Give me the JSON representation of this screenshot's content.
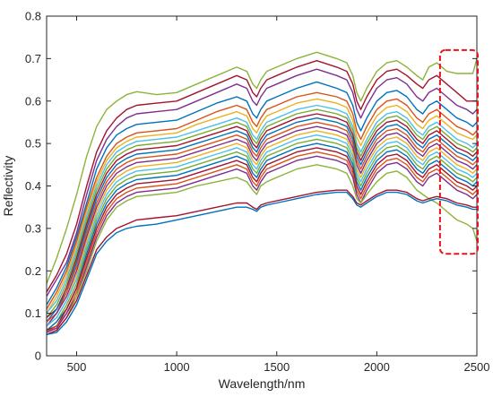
{
  "chart_data": {
    "type": "line",
    "title": "",
    "xlabel": "Wavelength/nm",
    "ylabel": "Reflectivity",
    "xlim": [
      350,
      2500
    ],
    "ylim": [
      0,
      0.8
    ],
    "xticks": [
      500,
      1000,
      1500,
      2000,
      2500
    ],
    "xtick_labels": [
      "500",
      "1000",
      "1500",
      "2000",
      "2500"
    ],
    "yticks": [
      0,
      0.1,
      0.2,
      0.3,
      0.4,
      0.5,
      0.6,
      0.7,
      0.8
    ],
    "ytick_labels": [
      "0",
      "0.1",
      "0.2",
      "0.3",
      "0.4",
      "0.5",
      "0.6",
      "0.7",
      "0.8"
    ],
    "grid": false,
    "legend": "none",
    "highlight_region": {
      "x": [
        2280,
        2500
      ],
      "y": [
        0.24,
        0.72
      ],
      "color": "#e8141b",
      "style": "dashed"
    },
    "x": [
      350,
      400,
      450,
      500,
      550,
      600,
      650,
      700,
      750,
      800,
      900,
      1000,
      1100,
      1200,
      1300,
      1350,
      1380,
      1400,
      1420,
      1450,
      1500,
      1600,
      1700,
      1800,
      1850,
      1880,
      1900,
      1920,
      1950,
      2000,
      2050,
      2100,
      2150,
      2200,
      2230,
      2260,
      2300,
      2350,
      2400,
      2450,
      2480,
      2500
    ],
    "series": [
      {
        "color": "#8db33a",
        "values": [
          0.17,
          0.23,
          0.3,
          0.38,
          0.47,
          0.54,
          0.58,
          0.6,
          0.615,
          0.622,
          0.615,
          0.62,
          0.64,
          0.66,
          0.68,
          0.67,
          0.64,
          0.63,
          0.65,
          0.67,
          0.68,
          0.7,
          0.715,
          0.7,
          0.69,
          0.66,
          0.62,
          0.6,
          0.63,
          0.67,
          0.69,
          0.695,
          0.68,
          0.66,
          0.65,
          0.68,
          0.69,
          0.67,
          0.665,
          0.665,
          0.665,
          0.7
        ]
      },
      {
        "color": "#a2142f",
        "values": [
          0.15,
          0.19,
          0.24,
          0.31,
          0.4,
          0.48,
          0.53,
          0.56,
          0.58,
          0.59,
          0.595,
          0.6,
          0.62,
          0.64,
          0.66,
          0.65,
          0.62,
          0.61,
          0.63,
          0.65,
          0.66,
          0.68,
          0.695,
          0.68,
          0.67,
          0.64,
          0.6,
          0.58,
          0.61,
          0.65,
          0.67,
          0.675,
          0.66,
          0.64,
          0.63,
          0.65,
          0.66,
          0.64,
          0.62,
          0.6,
          0.6,
          0.6
        ]
      },
      {
        "color": "#7e2f8e",
        "values": [
          0.14,
          0.18,
          0.22,
          0.29,
          0.38,
          0.46,
          0.51,
          0.54,
          0.56,
          0.57,
          0.575,
          0.58,
          0.6,
          0.62,
          0.64,
          0.63,
          0.6,
          0.59,
          0.61,
          0.63,
          0.64,
          0.66,
          0.675,
          0.66,
          0.65,
          0.62,
          0.58,
          0.56,
          0.59,
          0.63,
          0.65,
          0.655,
          0.64,
          0.61,
          0.6,
          0.62,
          0.63,
          0.61,
          0.59,
          0.58,
          0.57,
          0.58
        ]
      },
      {
        "color": "#0072bd",
        "values": [
          0.12,
          0.16,
          0.21,
          0.28,
          0.36,
          0.44,
          0.49,
          0.52,
          0.535,
          0.545,
          0.55,
          0.555,
          0.575,
          0.595,
          0.61,
          0.6,
          0.57,
          0.56,
          0.58,
          0.6,
          0.61,
          0.63,
          0.645,
          0.63,
          0.62,
          0.59,
          0.55,
          0.53,
          0.56,
          0.6,
          0.62,
          0.625,
          0.61,
          0.58,
          0.57,
          0.59,
          0.6,
          0.58,
          0.56,
          0.55,
          0.54,
          0.55
        ]
      },
      {
        "color": "#d95319",
        "values": [
          0.11,
          0.15,
          0.2,
          0.27,
          0.35,
          0.42,
          0.47,
          0.5,
          0.515,
          0.525,
          0.53,
          0.535,
          0.555,
          0.575,
          0.59,
          0.58,
          0.55,
          0.54,
          0.56,
          0.58,
          0.59,
          0.61,
          0.62,
          0.61,
          0.6,
          0.57,
          0.53,
          0.51,
          0.54,
          0.58,
          0.6,
          0.605,
          0.59,
          0.56,
          0.55,
          0.57,
          0.58,
          0.56,
          0.54,
          0.53,
          0.52,
          0.53
        ]
      },
      {
        "color": "#edb120",
        "values": [
          0.1,
          0.14,
          0.19,
          0.26,
          0.34,
          0.41,
          0.46,
          0.49,
          0.505,
          0.515,
          0.52,
          0.525,
          0.545,
          0.56,
          0.575,
          0.565,
          0.535,
          0.525,
          0.545,
          0.565,
          0.575,
          0.595,
          0.605,
          0.595,
          0.585,
          0.555,
          0.515,
          0.495,
          0.525,
          0.565,
          0.585,
          0.59,
          0.575,
          0.545,
          0.535,
          0.555,
          0.565,
          0.545,
          0.525,
          0.515,
          0.51,
          0.52
        ]
      },
      {
        "color": "#4dbeee",
        "values": [
          0.1,
          0.13,
          0.18,
          0.25,
          0.33,
          0.4,
          0.45,
          0.48,
          0.495,
          0.505,
          0.51,
          0.515,
          0.53,
          0.545,
          0.56,
          0.55,
          0.52,
          0.51,
          0.53,
          0.55,
          0.56,
          0.58,
          0.59,
          0.58,
          0.57,
          0.54,
          0.5,
          0.48,
          0.51,
          0.55,
          0.57,
          0.575,
          0.56,
          0.53,
          0.52,
          0.54,
          0.55,
          0.53,
          0.51,
          0.5,
          0.49,
          0.5
        ]
      },
      {
        "color": "#77ac30",
        "values": [
          0.09,
          0.12,
          0.17,
          0.24,
          0.32,
          0.39,
          0.44,
          0.47,
          0.485,
          0.495,
          0.5,
          0.505,
          0.52,
          0.535,
          0.55,
          0.54,
          0.51,
          0.5,
          0.52,
          0.54,
          0.55,
          0.57,
          0.58,
          0.57,
          0.56,
          0.53,
          0.49,
          0.47,
          0.5,
          0.54,
          0.56,
          0.565,
          0.55,
          0.52,
          0.51,
          0.53,
          0.54,
          0.52,
          0.5,
          0.49,
          0.48,
          0.49
        ]
      },
      {
        "color": "#a2142f",
        "values": [
          0.09,
          0.11,
          0.16,
          0.23,
          0.31,
          0.38,
          0.43,
          0.46,
          0.475,
          0.485,
          0.49,
          0.495,
          0.51,
          0.525,
          0.54,
          0.53,
          0.5,
          0.49,
          0.51,
          0.53,
          0.54,
          0.56,
          0.57,
          0.56,
          0.55,
          0.52,
          0.48,
          0.46,
          0.49,
          0.53,
          0.55,
          0.555,
          0.54,
          0.51,
          0.5,
          0.52,
          0.53,
          0.51,
          0.49,
          0.48,
          0.47,
          0.48
        ]
      },
      {
        "color": "#0072bd",
        "values": [
          0.08,
          0.11,
          0.15,
          0.22,
          0.3,
          0.37,
          0.42,
          0.45,
          0.465,
          0.475,
          0.48,
          0.485,
          0.5,
          0.515,
          0.53,
          0.52,
          0.49,
          0.48,
          0.5,
          0.52,
          0.53,
          0.55,
          0.56,
          0.55,
          0.54,
          0.51,
          0.47,
          0.45,
          0.48,
          0.52,
          0.54,
          0.545,
          0.53,
          0.5,
          0.49,
          0.51,
          0.52,
          0.5,
          0.48,
          0.47,
          0.46,
          0.47
        ]
      },
      {
        "color": "#d95319",
        "values": [
          0.08,
          0.1,
          0.15,
          0.21,
          0.29,
          0.36,
          0.41,
          0.44,
          0.455,
          0.465,
          0.47,
          0.475,
          0.49,
          0.505,
          0.52,
          0.51,
          0.48,
          0.47,
          0.49,
          0.51,
          0.52,
          0.54,
          0.55,
          0.54,
          0.53,
          0.5,
          0.46,
          0.44,
          0.47,
          0.51,
          0.53,
          0.535,
          0.52,
          0.49,
          0.48,
          0.5,
          0.51,
          0.49,
          0.47,
          0.46,
          0.45,
          0.46
        ]
      },
      {
        "color": "#7e2f8e",
        "values": [
          0.07,
          0.1,
          0.14,
          0.2,
          0.28,
          0.35,
          0.4,
          0.43,
          0.445,
          0.455,
          0.46,
          0.465,
          0.48,
          0.495,
          0.51,
          0.5,
          0.47,
          0.46,
          0.48,
          0.5,
          0.51,
          0.53,
          0.54,
          0.53,
          0.52,
          0.49,
          0.45,
          0.43,
          0.46,
          0.5,
          0.52,
          0.525,
          0.51,
          0.48,
          0.47,
          0.49,
          0.5,
          0.48,
          0.46,
          0.45,
          0.44,
          0.45
        ]
      },
      {
        "color": "#edb120",
        "values": [
          0.07,
          0.09,
          0.13,
          0.19,
          0.27,
          0.34,
          0.39,
          0.42,
          0.435,
          0.445,
          0.45,
          0.455,
          0.47,
          0.485,
          0.5,
          0.49,
          0.46,
          0.45,
          0.47,
          0.49,
          0.5,
          0.52,
          0.53,
          0.52,
          0.51,
          0.48,
          0.44,
          0.42,
          0.45,
          0.49,
          0.51,
          0.515,
          0.5,
          0.47,
          0.46,
          0.48,
          0.49,
          0.47,
          0.45,
          0.44,
          0.43,
          0.44
        ]
      },
      {
        "color": "#4dbeee",
        "values": [
          0.07,
          0.09,
          0.13,
          0.18,
          0.26,
          0.33,
          0.38,
          0.41,
          0.425,
          0.435,
          0.44,
          0.445,
          0.46,
          0.475,
          0.49,
          0.48,
          0.45,
          0.44,
          0.46,
          0.48,
          0.49,
          0.51,
          0.52,
          0.51,
          0.5,
          0.47,
          0.43,
          0.41,
          0.44,
          0.48,
          0.5,
          0.505,
          0.49,
          0.46,
          0.45,
          0.47,
          0.48,
          0.46,
          0.44,
          0.43,
          0.42,
          0.43
        ]
      },
      {
        "color": "#77ac30",
        "values": [
          0.06,
          0.08,
          0.12,
          0.17,
          0.25,
          0.32,
          0.37,
          0.4,
          0.415,
          0.425,
          0.43,
          0.435,
          0.45,
          0.465,
          0.48,
          0.47,
          0.44,
          0.43,
          0.45,
          0.47,
          0.48,
          0.5,
          0.51,
          0.5,
          0.49,
          0.46,
          0.42,
          0.4,
          0.43,
          0.47,
          0.49,
          0.495,
          0.48,
          0.45,
          0.44,
          0.46,
          0.47,
          0.45,
          0.43,
          0.42,
          0.41,
          0.42
        ]
      },
      {
        "color": "#0072bd",
        "values": [
          0.06,
          0.08,
          0.11,
          0.16,
          0.24,
          0.31,
          0.36,
          0.39,
          0.405,
          0.415,
          0.42,
          0.425,
          0.44,
          0.455,
          0.47,
          0.46,
          0.43,
          0.42,
          0.44,
          0.46,
          0.47,
          0.49,
          0.5,
          0.49,
          0.48,
          0.45,
          0.41,
          0.39,
          0.42,
          0.46,
          0.48,
          0.485,
          0.47,
          0.44,
          0.43,
          0.45,
          0.46,
          0.44,
          0.42,
          0.41,
          0.4,
          0.41
        ]
      },
      {
        "color": "#a2142f",
        "values": [
          0.06,
          0.07,
          0.11,
          0.16,
          0.23,
          0.3,
          0.35,
          0.38,
          0.395,
          0.405,
          0.41,
          0.415,
          0.43,
          0.445,
          0.46,
          0.45,
          0.42,
          0.41,
          0.43,
          0.45,
          0.46,
          0.48,
          0.49,
          0.48,
          0.47,
          0.44,
          0.4,
          0.38,
          0.41,
          0.45,
          0.47,
          0.475,
          0.46,
          0.43,
          0.42,
          0.44,
          0.45,
          0.43,
          0.41,
          0.4,
          0.39,
          0.4
        ]
      },
      {
        "color": "#d95319",
        "values": [
          0.055,
          0.07,
          0.1,
          0.15,
          0.22,
          0.29,
          0.34,
          0.37,
          0.385,
          0.395,
          0.4,
          0.405,
          0.42,
          0.435,
          0.45,
          0.44,
          0.41,
          0.4,
          0.42,
          0.44,
          0.45,
          0.47,
          0.48,
          0.47,
          0.46,
          0.43,
          0.39,
          0.37,
          0.4,
          0.44,
          0.46,
          0.465,
          0.45,
          0.42,
          0.41,
          0.43,
          0.44,
          0.42,
          0.4,
          0.39,
          0.38,
          0.39
        ]
      },
      {
        "color": "#7e2f8e",
        "values": [
          0.055,
          0.065,
          0.1,
          0.14,
          0.21,
          0.28,
          0.33,
          0.36,
          0.375,
          0.385,
          0.39,
          0.395,
          0.41,
          0.425,
          0.44,
          0.43,
          0.4,
          0.39,
          0.41,
          0.43,
          0.44,
          0.46,
          0.47,
          0.46,
          0.45,
          0.42,
          0.38,
          0.36,
          0.39,
          0.43,
          0.45,
          0.455,
          0.44,
          0.41,
          0.4,
          0.42,
          0.43,
          0.41,
          0.39,
          0.38,
          0.37,
          0.38
        ]
      },
      {
        "color": "#8db33a",
        "values": [
          0.05,
          0.06,
          0.09,
          0.14,
          0.2,
          0.27,
          0.32,
          0.35,
          0.365,
          0.375,
          0.38,
          0.385,
          0.4,
          0.41,
          0.42,
          0.41,
          0.39,
          0.38,
          0.4,
          0.41,
          0.42,
          0.44,
          0.45,
          0.44,
          0.43,
          0.4,
          0.37,
          0.36,
          0.38,
          0.41,
          0.43,
          0.435,
          0.42,
          0.39,
          0.38,
          0.37,
          0.36,
          0.34,
          0.32,
          0.31,
          0.3,
          0.27
        ]
      },
      {
        "color": "#a2142f",
        "values": [
          0.05,
          0.06,
          0.09,
          0.13,
          0.19,
          0.25,
          0.28,
          0.3,
          0.31,
          0.32,
          0.325,
          0.33,
          0.34,
          0.35,
          0.36,
          0.36,
          0.35,
          0.345,
          0.355,
          0.36,
          0.365,
          0.375,
          0.385,
          0.39,
          0.39,
          0.375,
          0.36,
          0.355,
          0.365,
          0.38,
          0.39,
          0.39,
          0.385,
          0.37,
          0.365,
          0.37,
          0.375,
          0.37,
          0.36,
          0.355,
          0.35,
          0.35
        ]
      },
      {
        "color": "#0072bd",
        "values": [
          0.05,
          0.055,
          0.08,
          0.12,
          0.18,
          0.24,
          0.27,
          0.29,
          0.3,
          0.305,
          0.31,
          0.32,
          0.33,
          0.34,
          0.35,
          0.35,
          0.345,
          0.34,
          0.35,
          0.355,
          0.36,
          0.37,
          0.38,
          0.385,
          0.385,
          0.37,
          0.355,
          0.35,
          0.36,
          0.375,
          0.385,
          0.385,
          0.38,
          0.365,
          0.36,
          0.365,
          0.37,
          0.365,
          0.355,
          0.35,
          0.345,
          0.345
        ]
      }
    ]
  }
}
